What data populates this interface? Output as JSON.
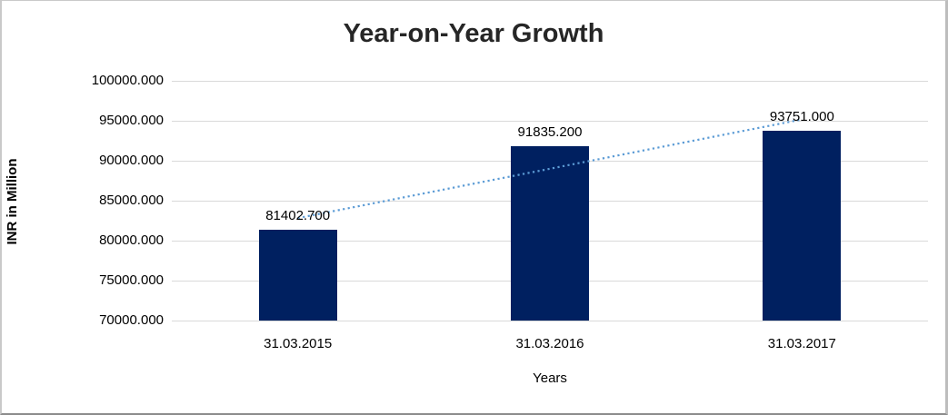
{
  "chart_data": {
    "type": "bar",
    "title": "Year-on-Year Growth",
    "xlabel": "Years",
    "ylabel": "INR in Million",
    "categories": [
      "31.03.2015",
      "31.03.2016",
      "31.03.2017"
    ],
    "values": [
      81402.7,
      91835.2,
      93751.0
    ],
    "data_labels": [
      "81402.700",
      "91835.200",
      "93751.000"
    ],
    "ytick_labels": [
      "100000.000",
      "95000.000",
      "90000.000",
      "85000.000",
      "80000.000",
      "75000.000",
      "70000.000"
    ],
    "ylim": [
      70000,
      100000
    ],
    "grid": "horizontal",
    "legend": "none",
    "bar_color": "#002060",
    "gridline_color": "#d9d9d9",
    "axis_line_color": "#b7b7b7",
    "trendline": {
      "type": "linear",
      "style": "dotted",
      "color": "#5B9BD5",
      "values": [
        82822.1,
        88996.3,
        95170.5
      ]
    }
  }
}
